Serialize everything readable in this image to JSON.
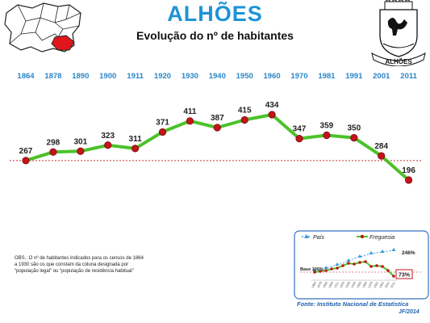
{
  "header": {
    "title": "ALHÕES",
    "subtitle": "Evolução do nº de habitantes",
    "coat_label": "ALHÕES"
  },
  "note": "OBS.: O nº de habitantes indicados para os censos de 1864 a 1930 são os que constam da coluna designada por “população legal” ou “população de residência habitual”",
  "source": "Fonte: Instituto Nacional de Estatística",
  "credit": "JF/2014",
  "colors": {
    "line": "#4cc22a",
    "marker": "#c4141b",
    "title": "#1f93d6",
    "pais": "#3b9ad6"
  },
  "chart_data": [
    {
      "type": "line",
      "x": [
        "1864",
        "1878",
        "1890",
        "1900",
        "1911",
        "1920",
        "1930",
        "1940",
        "1950",
        "1960",
        "1970",
        "1981",
        "1991",
        "2001",
        "2011"
      ],
      "values": [
        267,
        298,
        301,
        323,
        311,
        371,
        411,
        387,
        415,
        434,
        347,
        359,
        350,
        284,
        196
      ],
      "reference_line": 267,
      "grid": false
    },
    {
      "type": "line",
      "legend": "top",
      "series": [
        {
          "name": "País",
          "last_label": "246%"
        },
        {
          "name": "Freguesia",
          "last_label": "73%"
        }
      ],
      "base_label": "Base 100%"
    }
  ]
}
